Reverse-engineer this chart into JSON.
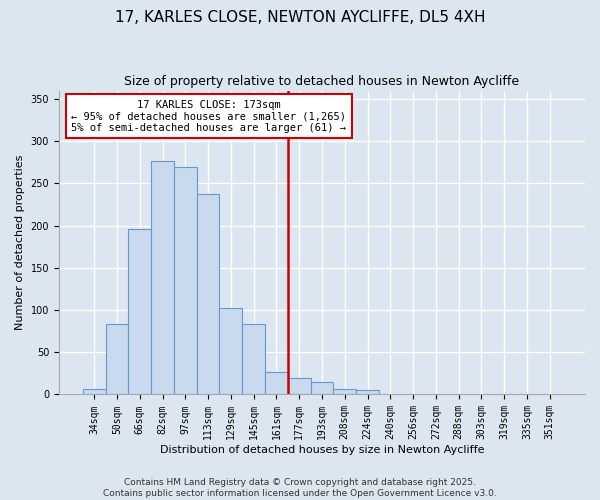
{
  "title": "17, KARLES CLOSE, NEWTON AYCLIFFE, DL5 4XH",
  "subtitle": "Size of property relative to detached houses in Newton Aycliffe",
  "xlabel": "Distribution of detached houses by size in Newton Aycliffe",
  "ylabel": "Number of detached properties",
  "bar_labels": [
    "34sqm",
    "50sqm",
    "66sqm",
    "82sqm",
    "97sqm",
    "113sqm",
    "129sqm",
    "145sqm",
    "161sqm",
    "177sqm",
    "193sqm",
    "208sqm",
    "224sqm",
    "240sqm",
    "256sqm",
    "272sqm",
    "288sqm",
    "303sqm",
    "319sqm",
    "335sqm",
    "351sqm"
  ],
  "bar_heights": [
    6,
    83,
    196,
    276,
    270,
    237,
    103,
    83,
    27,
    20,
    15,
    6,
    5,
    0,
    0,
    0,
    0,
    1,
    0,
    0,
    1
  ],
  "bar_color": "#c9d9ee",
  "bar_edge_color": "#6699cc",
  "vline_color": "#cc0000",
  "annotation_title": "17 KARLES CLOSE: 173sqm",
  "annotation_line1": "← 95% of detached houses are smaller (1,265)",
  "annotation_line2": "5% of semi-detached houses are larger (61) →",
  "ylim": [
    0,
    360
  ],
  "yticks": [
    0,
    50,
    100,
    150,
    200,
    250,
    300,
    350
  ],
  "footer_line1": "Contains HM Land Registry data © Crown copyright and database right 2025.",
  "footer_line2": "Contains public sector information licensed under the Open Government Licence v3.0.",
  "background_color": "#dce6f0",
  "plot_bg_color": "#dce6f0",
  "grid_color": "#ffffff",
  "title_fontsize": 11,
  "subtitle_fontsize": 9,
  "axis_label_fontsize": 8,
  "tick_fontsize": 7,
  "footer_fontsize": 6.5,
  "vline_index": 8.5
}
